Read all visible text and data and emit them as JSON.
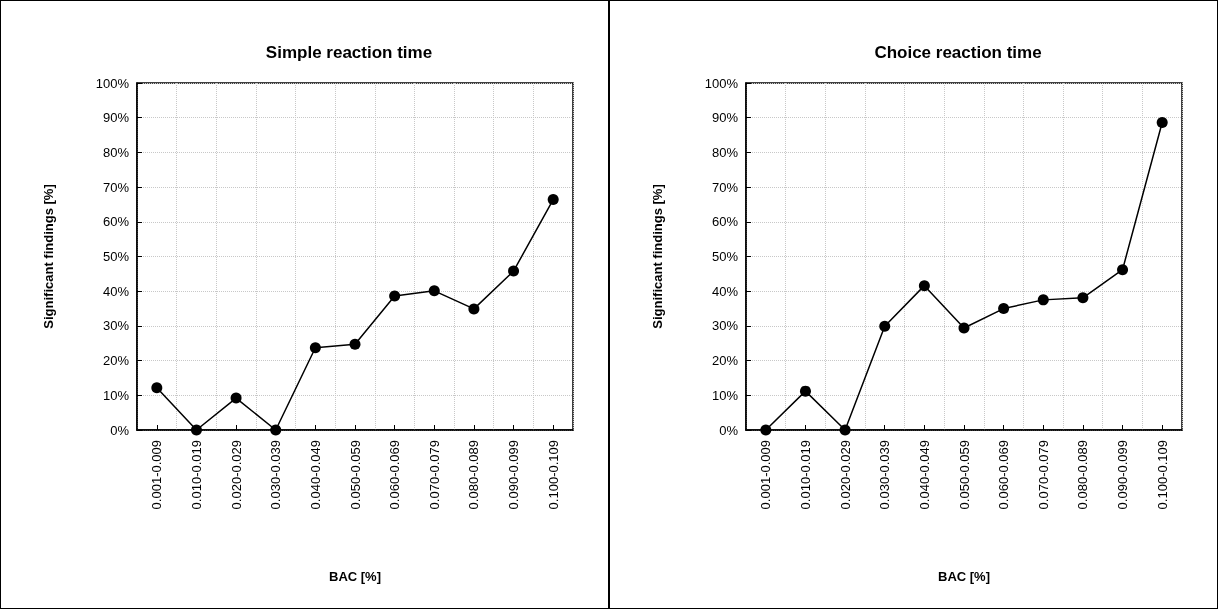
{
  "chart_data": [
    {
      "type": "line",
      "title": "Simple reaction time",
      "xlabel": "BAC [%]",
      "ylabel": "Significant findings [%]",
      "categories": [
        "0.001-0.009",
        "0.010-0.019",
        "0.020-0.029",
        "0.030-0.039",
        "0.040-0.049",
        "0.050-0.059",
        "0.060-0.069",
        "0.070-0.079",
        "0.080-0.089",
        "0.090-0.099",
        "0.100-0.109"
      ],
      "series": [
        {
          "color": "#000000",
          "values": [
            12.2,
            0,
            9.2,
            0,
            23.7,
            24.7,
            38.6,
            40.1,
            34.9,
            45.8,
            66.4
          ]
        }
      ],
      "ylim": [
        0,
        100
      ],
      "yticks": [
        {
          "value": 0,
          "label": "0%"
        },
        {
          "value": 10,
          "label": "10%"
        },
        {
          "value": 20,
          "label": "20%"
        },
        {
          "value": 30,
          "label": "30%"
        },
        {
          "value": 40,
          "label": "40%"
        },
        {
          "value": 50,
          "label": "50%"
        },
        {
          "value": 60,
          "label": "60%"
        },
        {
          "value": 70,
          "label": "70%"
        },
        {
          "value": 80,
          "label": "80%"
        },
        {
          "value": 90,
          "label": "90%"
        },
        {
          "value": 100,
          "label": "100%"
        }
      ],
      "grid": true,
      "marker": "circle",
      "line_style": "solid"
    },
    {
      "type": "line",
      "title": "Choice reaction time",
      "xlabel": "BAC [%]",
      "ylabel": "Significant findings [%]",
      "categories": [
        "0.001-0.009",
        "0.010-0.019",
        "0.020-0.029",
        "0.030-0.039",
        "0.040-0.049",
        "0.050-0.059",
        "0.060-0.069",
        "0.070-0.079",
        "0.080-0.089",
        "0.090-0.099",
        "0.100-0.109"
      ],
      "series": [
        {
          "color": "#000000",
          "values": [
            0,
            11.2,
            0,
            29.9,
            41.6,
            29.4,
            35.0,
            37.5,
            38.1,
            46.2,
            88.6
          ]
        }
      ],
      "ylim": [
        0,
        100
      ],
      "yticks": [
        {
          "value": 0,
          "label": "0%"
        },
        {
          "value": 10,
          "label": "10%"
        },
        {
          "value": 20,
          "label": "20%"
        },
        {
          "value": 30,
          "label": "30%"
        },
        {
          "value": 40,
          "label": "40%"
        },
        {
          "value": 50,
          "label": "50%"
        },
        {
          "value": 60,
          "label": "60%"
        },
        {
          "value": 70,
          "label": "70%"
        },
        {
          "value": 80,
          "label": "80%"
        },
        {
          "value": 90,
          "label": "90%"
        },
        {
          "value": 100,
          "label": "100%"
        }
      ],
      "grid": true,
      "marker": "circle",
      "line_style": "solid"
    }
  ]
}
